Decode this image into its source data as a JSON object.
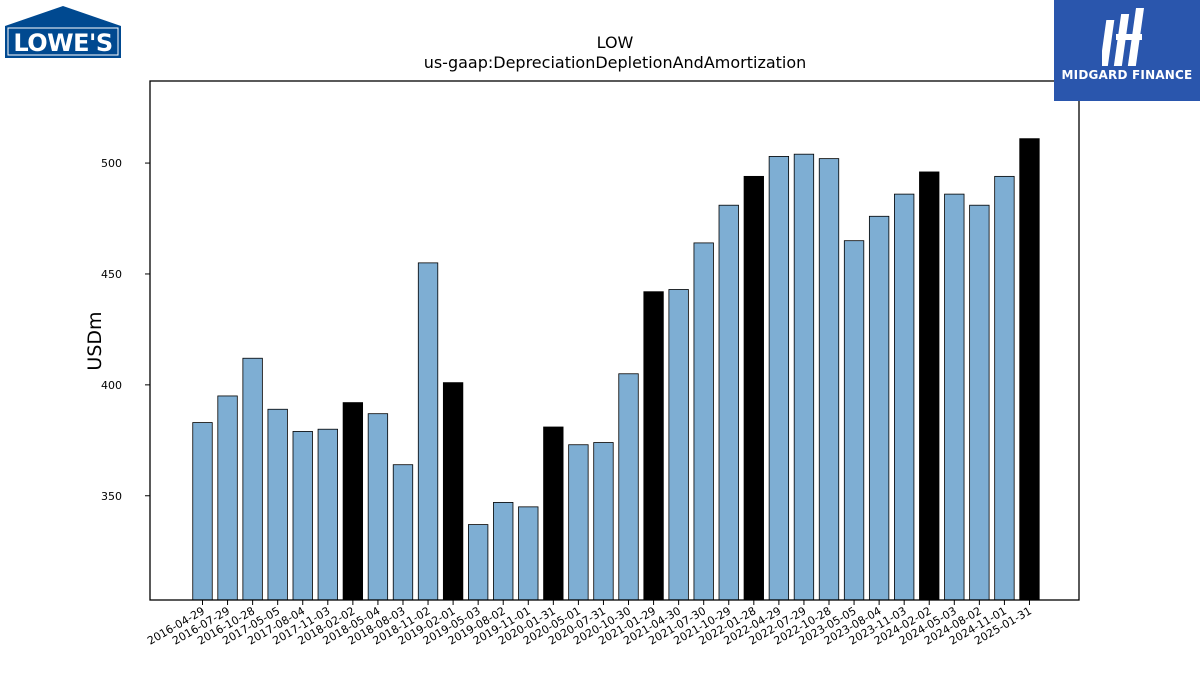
{
  "logos": {
    "left_brand": "LOWE'S",
    "right_brand": "MIDGARD FINANCE"
  },
  "colors": {
    "bar_fill": "#7eaed3",
    "bar_highlight": "#000000",
    "bar_edge": "#000000",
    "lowes_blue": "#004990",
    "midgard_blue": "#2a56ad"
  },
  "chart_data": {
    "type": "bar",
    "title": "LOW",
    "subtitle": "us-gaap:DepreciationDepletionAndAmortization",
    "xlabel": "",
    "ylabel": "USDm",
    "ylim": [
      303,
      537
    ],
    "yticks": [
      350,
      400,
      450,
      500
    ],
    "grid": false,
    "categories": [
      "2016-04-29",
      "2016-07-29",
      "2016-10-28",
      "2017-05-05",
      "2017-08-04",
      "2017-11-03",
      "2018-02-02",
      "2018-05-04",
      "2018-08-03",
      "2018-11-02",
      "2019-02-01",
      "2019-05-03",
      "2019-08-02",
      "2019-11-01",
      "2020-01-31",
      "2020-05-01",
      "2020-07-31",
      "2020-10-30",
      "2021-01-29",
      "2021-04-30",
      "2021-07-30",
      "2021-10-29",
      "2022-01-28",
      "2022-04-29",
      "2022-07-29",
      "2022-10-28",
      "2023-05-05",
      "2023-08-04",
      "2023-11-03",
      "2024-02-02",
      "2024-05-03",
      "2024-08-02",
      "2024-11-01",
      "2025-01-31"
    ],
    "values": [
      383,
      395,
      412,
      389,
      379,
      380,
      392,
      387,
      364,
      455,
      401,
      337,
      347,
      345,
      381,
      373,
      374,
      405,
      442,
      443,
      464,
      481,
      494,
      503,
      504,
      502,
      465,
      476,
      486,
      496,
      486,
      481,
      494,
      511
    ],
    "highlighted": [
      false,
      false,
      false,
      false,
      false,
      false,
      true,
      false,
      false,
      false,
      true,
      false,
      false,
      false,
      true,
      false,
      false,
      false,
      true,
      false,
      false,
      false,
      true,
      false,
      false,
      false,
      false,
      false,
      false,
      true,
      false,
      false,
      false,
      true
    ]
  }
}
